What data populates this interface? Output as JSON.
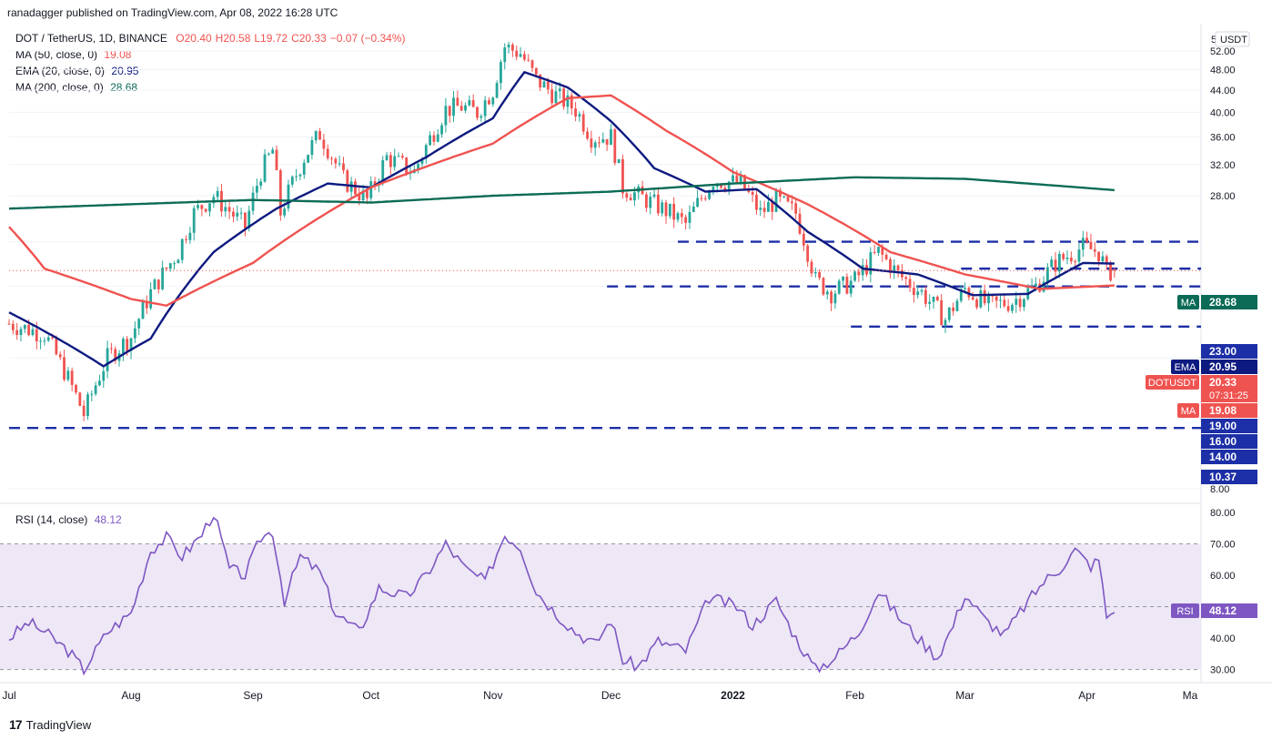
{
  "header": {
    "publisher_line": "ranadagger published on TradingView.com, Apr 08, 2022 16:28 UTC"
  },
  "legend": {
    "symbol": "DOT / TetherUS, 1D, BINANCE",
    "open": "O20.40",
    "high": "H20.58",
    "low": "L19.72",
    "close": "C20.33",
    "change": "−0.07 (−0.34%)",
    "ma50_label": "MA (50, close, 0)",
    "ma50_value": "19.08",
    "ema20_label": "EMA (20, close, 0)",
    "ema20_value": "20.95",
    "ma200_label": "MA (200, close, 0)",
    "ma200_value": "28.68",
    "rsi_label": "RSI (14, close)",
    "rsi_value": "48.12"
  },
  "price_axis": {
    "currency": "USDT",
    "scale_button": "5",
    "ticks": [
      "52.00",
      "48.00",
      "44.00",
      "40.00",
      "36.00",
      "32.00",
      "28.00",
      "23.00",
      "19.00",
      "16.00",
      "14.00",
      "10.37",
      "8.00"
    ]
  },
  "rsi_axis": {
    "ticks": [
      "80.00",
      "70.00",
      "60.00",
      "50.00",
      "40.00",
      "30.00"
    ]
  },
  "time_axis": {
    "labels": [
      "Jul",
      "Aug",
      "Sep",
      "Oct",
      "Nov",
      "Dec",
      "2022",
      "Feb",
      "Mar",
      "Apr",
      "Ma"
    ]
  },
  "badges": {
    "ma200": {
      "label": "MA",
      "value": "28.68",
      "color": "#0b6b56"
    },
    "level_23": {
      "value": "23.00",
      "color": "#1c2fa6"
    },
    "ema": {
      "label": "EMA",
      "value": "20.95",
      "color": "#0d1a80"
    },
    "symbol": {
      "label": "DOTUSDT",
      "value": "20.33",
      "countdown": "07:31:25",
      "color": "#ef5350"
    },
    "ma50": {
      "label": "MA",
      "value": "19.08",
      "color": "#ef5350"
    },
    "level_19": {
      "value": "19.00",
      "color": "#1c2fa6"
    },
    "level_16": {
      "value": "16.00",
      "color": "#1c2fa6"
    },
    "level_14": {
      "value": "14.00",
      "color": "#1c2fa6"
    },
    "level_10": {
      "value": "10.37",
      "color": "#1c2fa6"
    },
    "rsi": {
      "label": "RSI",
      "value": "48.12",
      "color": "#7e57c2"
    }
  },
  "footer": {
    "brand": "TradingView"
  },
  "colors": {
    "up": "#26a69a",
    "down": "#ef5350",
    "ema20": "#0d1a80",
    "ma50": "#ef5350",
    "ma200": "#0b6b56",
    "levels": "#1c2fa6",
    "rsi": "#7e57c2",
    "rsi_band": "#ede7f6"
  },
  "chart_data": {
    "type": "candlestick",
    "symbol": "DOT / TetherUS",
    "timeframe": "1D",
    "exchange": "BINANCE",
    "scale": "log",
    "x_range": [
      "2021-07-01",
      "2022-04-30"
    ],
    "y_range": [
      7.6,
      58
    ],
    "last": {
      "open": 20.4,
      "high": 20.58,
      "low": 19.72,
      "close": 20.33,
      "change": -0.07,
      "change_pct": -0.34
    },
    "price_anchors": [
      {
        "date": "2021-07-01",
        "price": 16.2
      },
      {
        "date": "2021-07-10",
        "price": 15.5
      },
      {
        "date": "2021-07-20",
        "price": 11.0
      },
      {
        "date": "2021-07-26",
        "price": 14.0
      },
      {
        "date": "2021-08-01",
        "price": 15.3
      },
      {
        "date": "2021-08-06",
        "price": 18.5
      },
      {
        "date": "2021-08-13",
        "price": 22.0
      },
      {
        "date": "2021-08-17",
        "price": 26.0
      },
      {
        "date": "2021-08-22",
        "price": 28.0
      },
      {
        "date": "2021-08-30",
        "price": 24.5
      },
      {
        "date": "2021-09-03",
        "price": 31.0
      },
      {
        "date": "2021-09-06",
        "price": 34.0
      },
      {
        "date": "2021-09-08",
        "price": 26.0
      },
      {
        "date": "2021-09-14",
        "price": 33.0
      },
      {
        "date": "2021-09-18",
        "price": 36.5
      },
      {
        "date": "2021-09-24",
        "price": 30.0
      },
      {
        "date": "2021-09-30",
        "price": 27.5
      },
      {
        "date": "2021-10-05",
        "price": 33.0
      },
      {
        "date": "2021-10-12",
        "price": 31.0
      },
      {
        "date": "2021-10-20",
        "price": 40.5
      },
      {
        "date": "2021-10-24",
        "price": 41.0
      },
      {
        "date": "2021-10-28",
        "price": 40.0
      },
      {
        "date": "2021-11-01",
        "price": 44.0
      },
      {
        "date": "2021-11-04",
        "price": 53.0
      },
      {
        "date": "2021-11-08",
        "price": 51.5
      },
      {
        "date": "2021-11-12",
        "price": 46.0
      },
      {
        "date": "2021-11-16",
        "price": 43.5
      },
      {
        "date": "2021-11-22",
        "price": 40.5
      },
      {
        "date": "2021-11-26",
        "price": 36.0
      },
      {
        "date": "2021-12-01",
        "price": 36.0
      },
      {
        "date": "2021-12-04",
        "price": 29.0
      },
      {
        "date": "2021-12-10",
        "price": 27.5
      },
      {
        "date": "2021-12-16",
        "price": 26.0
      },
      {
        "date": "2021-12-20",
        "price": 24.8
      },
      {
        "date": "2021-12-27",
        "price": 30.0
      },
      {
        "date": "2022-01-03",
        "price": 29.5
      },
      {
        "date": "2022-01-08",
        "price": 26.0
      },
      {
        "date": "2022-01-12",
        "price": 27.5
      },
      {
        "date": "2022-01-17",
        "price": 26.0
      },
      {
        "date": "2022-01-22",
        "price": 19.5
      },
      {
        "date": "2022-01-26",
        "price": 18.5
      },
      {
        "date": "2022-02-01",
        "price": 19.5
      },
      {
        "date": "2022-02-07",
        "price": 22.0
      },
      {
        "date": "2022-02-12",
        "price": 20.0
      },
      {
        "date": "2022-02-18",
        "price": 18.5
      },
      {
        "date": "2022-02-24",
        "price": 16.5
      },
      {
        "date": "2022-03-01",
        "price": 18.8
      },
      {
        "date": "2022-03-07",
        "price": 17.5
      },
      {
        "date": "2022-03-13",
        "price": 17.8
      },
      {
        "date": "2022-03-19",
        "price": 19.0
      },
      {
        "date": "2022-03-24",
        "price": 21.0
      },
      {
        "date": "2022-03-31",
        "price": 22.5
      },
      {
        "date": "2022-04-04",
        "price": 22.0
      },
      {
        "date": "2022-04-06",
        "price": 20.2
      },
      {
        "date": "2022-04-08",
        "price": 20.33
      }
    ],
    "moving_averages": [
      {
        "name": "EMA (20, close, 0)",
        "value": 20.95,
        "points": [
          {
            "date": "2021-07-01",
            "value": 17.0
          },
          {
            "date": "2021-07-25",
            "value": 13.5
          },
          {
            "date": "2021-08-06",
            "value": 15.2
          },
          {
            "date": "2021-08-22",
            "value": 22.0
          },
          {
            "date": "2021-09-07",
            "value": 26.5
          },
          {
            "date": "2021-09-20",
            "value": 29.5
          },
          {
            "date": "2021-10-01",
            "value": 29.0
          },
          {
            "date": "2021-10-15",
            "value": 33.0
          },
          {
            "date": "2021-11-01",
            "value": 39.0
          },
          {
            "date": "2021-11-09",
            "value": 47.5
          },
          {
            "date": "2021-11-20",
            "value": 44.5
          },
          {
            "date": "2021-12-01",
            "value": 38.5
          },
          {
            "date": "2021-12-12",
            "value": 31.5
          },
          {
            "date": "2021-12-25",
            "value": 28.5
          },
          {
            "date": "2022-01-07",
            "value": 28.8
          },
          {
            "date": "2022-01-20",
            "value": 24.0
          },
          {
            "date": "2022-02-03",
            "value": 20.5
          },
          {
            "date": "2022-02-17",
            "value": 20.0
          },
          {
            "date": "2022-03-03",
            "value": 18.3
          },
          {
            "date": "2022-03-17",
            "value": 18.4
          },
          {
            "date": "2022-03-31",
            "value": 21.0
          },
          {
            "date": "2022-04-08",
            "value": 20.95
          }
        ]
      },
      {
        "name": "MA (50, close, 0)",
        "value": 19.08,
        "points": [
          {
            "date": "2021-07-01",
            "value": 24.5
          },
          {
            "date": "2021-07-10",
            "value": 20.5
          },
          {
            "date": "2021-08-01",
            "value": 18.0
          },
          {
            "date": "2021-08-10",
            "value": 17.5
          },
          {
            "date": "2021-09-01",
            "value": 21.0
          },
          {
            "date": "2021-10-01",
            "value": 29.0
          },
          {
            "date": "2021-11-01",
            "value": 35.0
          },
          {
            "date": "2021-11-20",
            "value": 42.5
          },
          {
            "date": "2021-12-01",
            "value": 43.0
          },
          {
            "date": "2021-12-15",
            "value": 37.0
          },
          {
            "date": "2022-01-01",
            "value": 31.0
          },
          {
            "date": "2022-01-20",
            "value": 27.0
          },
          {
            "date": "2022-02-10",
            "value": 22.0
          },
          {
            "date": "2022-03-01",
            "value": 20.0
          },
          {
            "date": "2022-03-20",
            "value": 18.8
          },
          {
            "date": "2022-04-08",
            "value": 19.08
          }
        ]
      },
      {
        "name": "MA (200, close, 0)",
        "value": 28.68,
        "points": [
          {
            "date": "2021-07-01",
            "value": 26.5
          },
          {
            "date": "2021-08-01",
            "value": 27.0
          },
          {
            "date": "2021-09-01",
            "value": 27.5
          },
          {
            "date": "2021-10-01",
            "value": 27.2
          },
          {
            "date": "2021-11-01",
            "value": 28.0
          },
          {
            "date": "2021-12-01",
            "value": 28.5
          },
          {
            "date": "2022-01-01",
            "value": 29.5
          },
          {
            "date": "2022-02-01",
            "value": 30.3
          },
          {
            "date": "2022-03-01",
            "value": 30.1
          },
          {
            "date": "2022-04-08",
            "value": 28.68
          }
        ]
      }
    ],
    "horizontal_levels": [
      {
        "price": 23.0,
        "from": "2021-12-18",
        "to": "2022-04-30"
      },
      {
        "price": 20.5,
        "from": "2022-02-28",
        "to": "2022-04-30"
      },
      {
        "price": 19.0,
        "from": "2021-11-30",
        "to": "2022-04-30"
      },
      {
        "price": 16.0,
        "from": "2022-01-31",
        "to": "2022-04-30"
      },
      {
        "price": 10.37,
        "from": "2021-07-01",
        "to": "2022-04-30"
      }
    ],
    "rsi": {
      "name": "RSI (14, close)",
      "value": 48.12,
      "overbought": 70,
      "oversold": 30,
      "y_range": [
        27,
        82
      ],
      "points": [
        {
          "date": "2021-07-01",
          "value": 40
        },
        {
          "date": "2021-07-06",
          "value": 45
        },
        {
          "date": "2021-07-10",
          "value": 42
        },
        {
          "date": "2021-07-16",
          "value": 36
        },
        {
          "date": "2021-07-20",
          "value": 30
        },
        {
          "date": "2021-07-26",
          "value": 42
        },
        {
          "date": "2021-08-01",
          "value": 48
        },
        {
          "date": "2021-08-06",
          "value": 68
        },
        {
          "date": "2021-08-10",
          "value": 72
        },
        {
          "date": "2021-08-14",
          "value": 66
        },
        {
          "date": "2021-08-19",
          "value": 73
        },
        {
          "date": "2021-08-22",
          "value": 80
        },
        {
          "date": "2021-08-26",
          "value": 62
        },
        {
          "date": "2021-08-30",
          "value": 60
        },
        {
          "date": "2021-09-03",
          "value": 72
        },
        {
          "date": "2021-09-06",
          "value": 74
        },
        {
          "date": "2021-09-09",
          "value": 52
        },
        {
          "date": "2021-09-13",
          "value": 66
        },
        {
          "date": "2021-09-18",
          "value": 61
        },
        {
          "date": "2021-09-22",
          "value": 48
        },
        {
          "date": "2021-09-28",
          "value": 42
        },
        {
          "date": "2021-10-03",
          "value": 56
        },
        {
          "date": "2021-10-10",
          "value": 53
        },
        {
          "date": "2021-10-15",
          "value": 60
        },
        {
          "date": "2021-10-20",
          "value": 70
        },
        {
          "date": "2021-10-25",
          "value": 62
        },
        {
          "date": "2021-10-30",
          "value": 58
        },
        {
          "date": "2021-11-04",
          "value": 73
        },
        {
          "date": "2021-11-08",
          "value": 69
        },
        {
          "date": "2021-11-12",
          "value": 55
        },
        {
          "date": "2021-11-17",
          "value": 48
        },
        {
          "date": "2021-11-22",
          "value": 42
        },
        {
          "date": "2021-11-27",
          "value": 38
        },
        {
          "date": "2021-12-01",
          "value": 46
        },
        {
          "date": "2021-12-04",
          "value": 33
        },
        {
          "date": "2021-12-08",
          "value": 31
        },
        {
          "date": "2021-12-13",
          "value": 39
        },
        {
          "date": "2021-12-20",
          "value": 36
        },
        {
          "date": "2021-12-26",
          "value": 53
        },
        {
          "date": "2022-01-02",
          "value": 50
        },
        {
          "date": "2022-01-06",
          "value": 44
        },
        {
          "date": "2022-01-12",
          "value": 52
        },
        {
          "date": "2022-01-17",
          "value": 40
        },
        {
          "date": "2022-01-22",
          "value": 30
        },
        {
          "date": "2022-01-27",
          "value": 34
        },
        {
          "date": "2022-02-02",
          "value": 42
        },
        {
          "date": "2022-02-07",
          "value": 55
        },
        {
          "date": "2022-02-12",
          "value": 47
        },
        {
          "date": "2022-02-17",
          "value": 40
        },
        {
          "date": "2022-02-22",
          "value": 34
        },
        {
          "date": "2022-02-26",
          "value": 44
        },
        {
          "date": "2022-03-01",
          "value": 54
        },
        {
          "date": "2022-03-06",
          "value": 46
        },
        {
          "date": "2022-03-11",
          "value": 41
        },
        {
          "date": "2022-03-16",
          "value": 50
        },
        {
          "date": "2022-03-21",
          "value": 58
        },
        {
          "date": "2022-03-25",
          "value": 62
        },
        {
          "date": "2022-03-29",
          "value": 68
        },
        {
          "date": "2022-04-02",
          "value": 63
        },
        {
          "date": "2022-04-04",
          "value": 65
        },
        {
          "date": "2022-04-06",
          "value": 47
        },
        {
          "date": "2022-04-08",
          "value": 48.12
        }
      ]
    }
  }
}
